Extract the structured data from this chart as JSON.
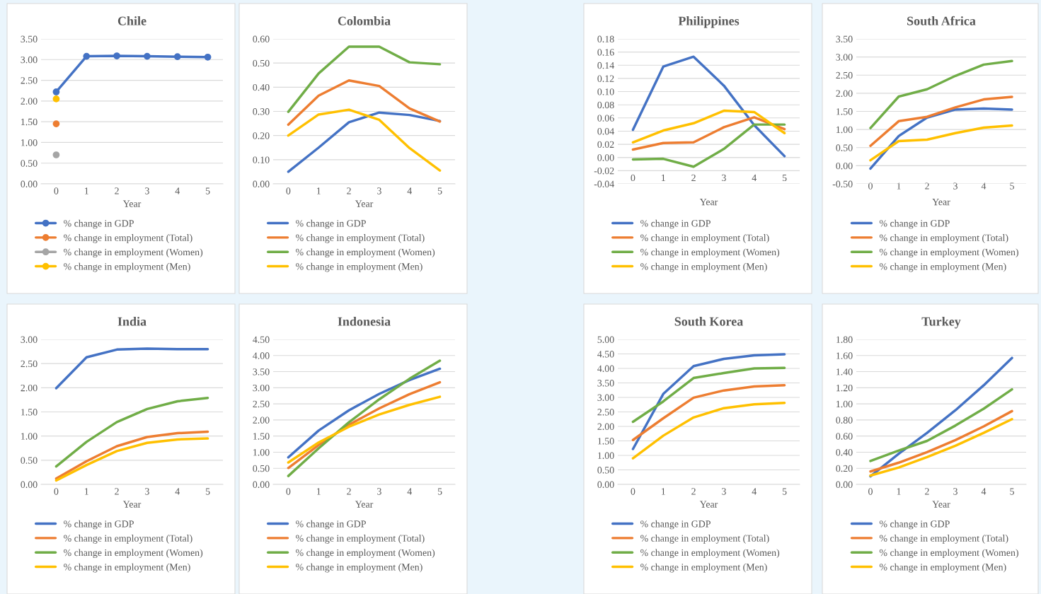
{
  "chart_data": [
    {
      "type": "line",
      "title": "Chile",
      "xlabel": "Year",
      "categories": [
        "0",
        "1",
        "2",
        "3",
        "4",
        "5"
      ],
      "ylim": [
        0,
        3.5
      ],
      "yticks": [
        {
          "value": 0,
          "label": "0.00"
        },
        {
          "value": 0.5,
          "label": "0.50"
        },
        {
          "value": 1,
          "label": "1.00"
        },
        {
          "value": 1.5,
          "label": "1.50"
        },
        {
          "value": 2,
          "label": "2.00"
        },
        {
          "value": 2.5,
          "label": "2.50"
        },
        {
          "value": 3,
          "label": "3.00"
        },
        {
          "value": 3.5,
          "label": "3.50"
        }
      ],
      "grid": "y",
      "legend": "bottom",
      "marker": "circle",
      "series": [
        {
          "name": "% change in GDP",
          "color": "#4472c4",
          "values": [
            2.22,
            3.08,
            3.09,
            3.08,
            3.07,
            3.06
          ]
        },
        {
          "name": "% change in employment (Total)",
          "color": "#ed7d31",
          "values": [
            1.45,
            null,
            null,
            null,
            null,
            null
          ]
        },
        {
          "name": "% change in employment (Women)",
          "color": "#a5a5a5",
          "values": [
            0.7,
            null,
            null,
            null,
            null,
            null
          ]
        },
        {
          "name": "% change in employment (Men)",
          "color": "#ffc000",
          "values": [
            2.05,
            null,
            null,
            null,
            null,
            null
          ]
        }
      ]
    },
    {
      "type": "line",
      "title": "Colombia",
      "xlabel": "Year",
      "categories": [
        "0",
        "1",
        "2",
        "3",
        "4",
        "5"
      ],
      "ylim": [
        0,
        0.6
      ],
      "yticks": [
        {
          "value": 0,
          "label": "0.00"
        },
        {
          "value": 0.1,
          "label": "0.10"
        },
        {
          "value": 0.2,
          "label": "0.20"
        },
        {
          "value": 0.3,
          "label": "0.30"
        },
        {
          "value": 0.4,
          "label": "0.40"
        },
        {
          "value": 0.5,
          "label": "0.50"
        },
        {
          "value": 0.6,
          "label": "0.60"
        }
      ],
      "grid": "y",
      "legend": "bottom",
      "series": [
        {
          "name": "% change in GDP",
          "color": "#4472c4",
          "values": [
            0.05,
            0.15,
            0.255,
            0.295,
            0.285,
            0.26
          ]
        },
        {
          "name": "% change in employment (Total)",
          "color": "#ed7d31",
          "values": [
            0.245,
            0.365,
            0.428,
            0.405,
            0.312,
            0.258
          ]
        },
        {
          "name": "% change in employment (Women)",
          "color": "#70ad47",
          "values": [
            0.298,
            0.457,
            0.568,
            0.568,
            0.503,
            0.495
          ]
        },
        {
          "name": "% change in employment (Men)",
          "color": "#ffc000",
          "values": [
            0.2,
            0.287,
            0.307,
            0.265,
            0.148,
            0.055
          ]
        }
      ]
    },
    {
      "type": "line",
      "title": "Philippines",
      "xlabel": "Year",
      "categories": [
        "0",
        "1",
        "2",
        "3",
        "4",
        "5"
      ],
      "ylim": [
        -0.04,
        0.18
      ],
      "yticks": [
        {
          "value": -0.04,
          "label": "-0.04"
        },
        {
          "value": -0.02,
          "label": "-0.02"
        },
        {
          "value": 0,
          "label": "0.00"
        },
        {
          "value": 0.02,
          "label": "0.02"
        },
        {
          "value": 0.04,
          "label": "0.04"
        },
        {
          "value": 0.06,
          "label": "0.06"
        },
        {
          "value": 0.08,
          "label": "0.08"
        },
        {
          "value": 0.1,
          "label": "0.10"
        },
        {
          "value": 0.12,
          "label": "0.12"
        },
        {
          "value": 0.14,
          "label": "0.14"
        },
        {
          "value": 0.16,
          "label": "0.16"
        },
        {
          "value": 0.18,
          "label": "0.18"
        }
      ],
      "grid": "y",
      "legend": "bottom",
      "series": [
        {
          "name": "% change in GDP",
          "color": "#4472c4",
          "values": [
            0.042,
            0.138,
            0.153,
            0.109,
            0.049,
            0.002
          ]
        },
        {
          "name": "% change in employment (Total)",
          "color": "#ed7d31",
          "values": [
            0.012,
            0.022,
            0.023,
            0.046,
            0.061,
            0.043
          ]
        },
        {
          "name": "% change in employment (Women)",
          "color": "#70ad47",
          "values": [
            -0.003,
            -0.002,
            -0.014,
            0.013,
            0.05,
            0.05
          ]
        },
        {
          "name": "% change in employment (Men)",
          "color": "#ffc000",
          "values": [
            0.023,
            0.041,
            0.052,
            0.071,
            0.069,
            0.037
          ]
        }
      ]
    },
    {
      "type": "line",
      "title": "South Africa",
      "xlabel": "Year",
      "categories": [
        "0",
        "1",
        "2",
        "3",
        "4",
        "5"
      ],
      "ylim": [
        -0.5,
        3.5
      ],
      "yticks": [
        {
          "value": -0.5,
          "label": "-0.50"
        },
        {
          "value": 0,
          "label": "0.00"
        },
        {
          "value": 0.5,
          "label": "0.50"
        },
        {
          "value": 1,
          "label": "1.00"
        },
        {
          "value": 1.5,
          "label": "1.50"
        },
        {
          "value": 2,
          "label": "2.00"
        },
        {
          "value": 2.5,
          "label": "2.50"
        },
        {
          "value": 3,
          "label": "3.00"
        },
        {
          "value": 3.5,
          "label": "3.50"
        }
      ],
      "grid": "y",
      "legend": "bottom",
      "series": [
        {
          "name": "% change in GDP",
          "color": "#4472c4",
          "values": [
            -0.08,
            0.82,
            1.33,
            1.55,
            1.58,
            1.55
          ]
        },
        {
          "name": "% change in employment (Total)",
          "color": "#ed7d31",
          "values": [
            0.55,
            1.23,
            1.35,
            1.61,
            1.83,
            1.9
          ]
        },
        {
          "name": "% change in employment (Women)",
          "color": "#70ad47",
          "values": [
            1.04,
            1.91,
            2.11,
            2.48,
            2.79,
            2.89
          ]
        },
        {
          "name": "% change in employment (Men)",
          "color": "#ffc000",
          "values": [
            0.15,
            0.68,
            0.72,
            0.9,
            1.05,
            1.11
          ]
        }
      ]
    },
    {
      "type": "line",
      "title": "India",
      "xlabel": "Year",
      "categories": [
        "0",
        "1",
        "2",
        "3",
        "4",
        "5"
      ],
      "ylim": [
        0,
        3
      ],
      "yticks": [
        {
          "value": 0,
          "label": "0.00"
        },
        {
          "value": 0.5,
          "label": "0.50"
        },
        {
          "value": 1,
          "label": "1.00"
        },
        {
          "value": 1.5,
          "label": "1.50"
        },
        {
          "value": 2,
          "label": "2.00"
        },
        {
          "value": 2.5,
          "label": "2.50"
        },
        {
          "value": 3,
          "label": "3.00"
        }
      ],
      "grid": "y",
      "legend": "bottom",
      "series": [
        {
          "name": "% change in GDP",
          "color": "#4472c4",
          "values": [
            1.99,
            2.63,
            2.79,
            2.81,
            2.8,
            2.8
          ]
        },
        {
          "name": "% change in employment (Total)",
          "color": "#ed7d31",
          "values": [
            0.12,
            0.48,
            0.79,
            0.98,
            1.06,
            1.09
          ]
        },
        {
          "name": "% change in employment (Women)",
          "color": "#70ad47",
          "values": [
            0.37,
            0.88,
            1.29,
            1.56,
            1.72,
            1.79
          ]
        },
        {
          "name": "% change in employment (Men)",
          "color": "#ffc000",
          "values": [
            0.08,
            0.4,
            0.69,
            0.86,
            0.93,
            0.95
          ]
        }
      ]
    },
    {
      "type": "line",
      "title": "Indonesia",
      "xlabel": "Year",
      "categories": [
        "0",
        "1",
        "2",
        "3",
        "4",
        "5"
      ],
      "ylim": [
        0,
        4.5
      ],
      "yticks": [
        {
          "value": 0,
          "label": "0.00"
        },
        {
          "value": 0.5,
          "label": "0.50"
        },
        {
          "value": 1,
          "label": "1.00"
        },
        {
          "value": 1.5,
          "label": "1.50"
        },
        {
          "value": 2,
          "label": "2.00"
        },
        {
          "value": 2.5,
          "label": "2.50"
        },
        {
          "value": 3,
          "label": "3.00"
        },
        {
          "value": 3.5,
          "label": "3.50"
        },
        {
          "value": 4,
          "label": "4.00"
        },
        {
          "value": 4.5,
          "label": "4.50"
        }
      ],
      "grid": "y",
      "legend": "bottom",
      "series": [
        {
          "name": "% change in GDP",
          "color": "#4472c4",
          "values": [
            0.84,
            1.67,
            2.3,
            2.81,
            3.24,
            3.59
          ]
        },
        {
          "name": "% change in employment (Total)",
          "color": "#ed7d31",
          "values": [
            0.51,
            1.22,
            1.85,
            2.36,
            2.8,
            3.17
          ]
        },
        {
          "name": "% change in employment (Women)",
          "color": "#70ad47",
          "values": [
            0.26,
            1.12,
            1.93,
            2.64,
            3.28,
            3.84
          ]
        },
        {
          "name": "% change in employment (Men)",
          "color": "#ffc000",
          "values": [
            0.68,
            1.3,
            1.79,
            2.17,
            2.47,
            2.72
          ]
        }
      ]
    },
    {
      "type": "line",
      "title": "South Korea",
      "xlabel": "Year",
      "categories": [
        "0",
        "1",
        "2",
        "3",
        "4",
        "5"
      ],
      "ylim": [
        0,
        5
      ],
      "yticks": [
        {
          "value": 0,
          "label": "0.00"
        },
        {
          "value": 0.5,
          "label": "0.50"
        },
        {
          "value": 1,
          "label": "1.00"
        },
        {
          "value": 1.5,
          "label": "1.50"
        },
        {
          "value": 2,
          "label": "2.00"
        },
        {
          "value": 2.5,
          "label": "2.50"
        },
        {
          "value": 3,
          "label": "3.00"
        },
        {
          "value": 3.5,
          "label": "3.50"
        },
        {
          "value": 4,
          "label": "4.00"
        },
        {
          "value": 4.5,
          "label": "4.50"
        },
        {
          "value": 5,
          "label": "5.00"
        }
      ],
      "grid": "y",
      "legend": "bottom",
      "series": [
        {
          "name": "% change in GDP",
          "color": "#4472c4",
          "values": [
            1.22,
            3.12,
            4.08,
            4.33,
            4.45,
            4.49
          ]
        },
        {
          "name": "% change in employment (Total)",
          "color": "#ed7d31",
          "values": [
            1.53,
            2.28,
            2.99,
            3.24,
            3.38,
            3.42
          ]
        },
        {
          "name": "% change in employment (Women)",
          "color": "#70ad47",
          "values": [
            2.16,
            2.86,
            3.67,
            3.84,
            4.0,
            4.02
          ]
        },
        {
          "name": "% change in employment (Men)",
          "color": "#ffc000",
          "values": [
            0.9,
            1.68,
            2.31,
            2.63,
            2.76,
            2.81
          ]
        }
      ]
    },
    {
      "type": "line",
      "title": "Turkey",
      "xlabel": "Year",
      "categories": [
        "0",
        "1",
        "2",
        "3",
        "4",
        "5"
      ],
      "ylim": [
        0,
        1.8
      ],
      "yticks": [
        {
          "value": 0,
          "label": "0.00"
        },
        {
          "value": 0.2,
          "label": "0.20"
        },
        {
          "value": 0.4,
          "label": "0.40"
        },
        {
          "value": 0.6,
          "label": "0.60"
        },
        {
          "value": 0.8,
          "label": "0.80"
        },
        {
          "value": 1,
          "label": "1.00"
        },
        {
          "value": 1.2,
          "label": "1.20"
        },
        {
          "value": 1.4,
          "label": "1.40"
        },
        {
          "value": 1.6,
          "label": "1.60"
        },
        {
          "value": 1.8,
          "label": "1.80"
        }
      ],
      "grid": "y",
      "legend": "bottom",
      "series": [
        {
          "name": "% change in GDP",
          "color": "#4472c4",
          "values": [
            0.1,
            0.38,
            0.64,
            0.92,
            1.23,
            1.57
          ]
        },
        {
          "name": "% change in employment (Total)",
          "color": "#ed7d31",
          "values": [
            0.16,
            0.27,
            0.4,
            0.55,
            0.72,
            0.91
          ]
        },
        {
          "name": "% change in employment (Women)",
          "color": "#70ad47",
          "values": [
            0.29,
            0.42,
            0.54,
            0.73,
            0.94,
            1.18
          ]
        },
        {
          "name": "% change in employment (Men)",
          "color": "#ffc000",
          "values": [
            0.11,
            0.21,
            0.34,
            0.48,
            0.64,
            0.81
          ]
        }
      ]
    }
  ]
}
